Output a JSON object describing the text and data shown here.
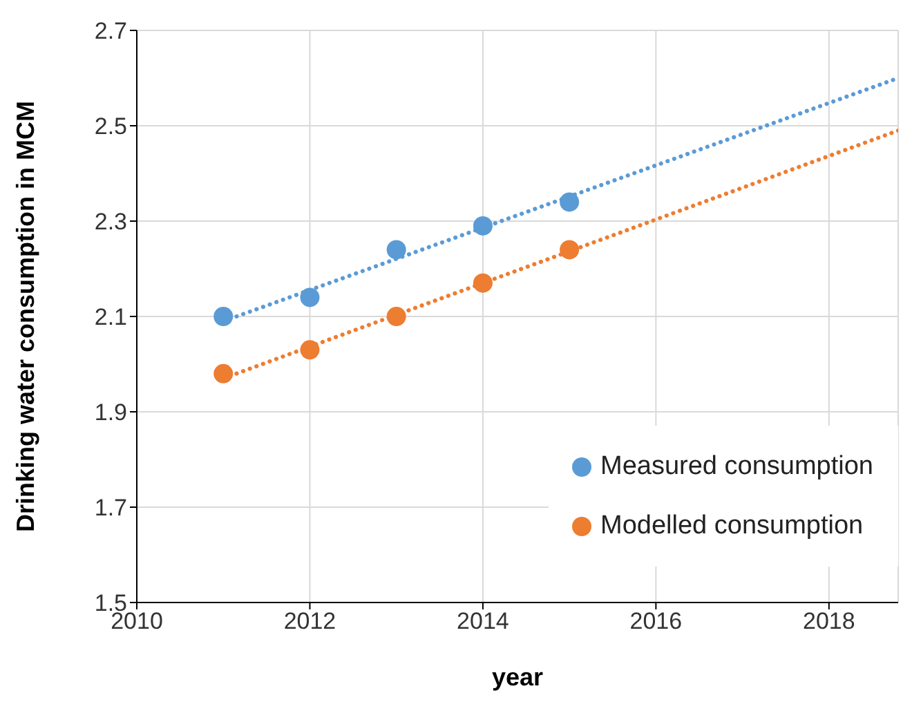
{
  "chart_data": {
    "type": "scatter",
    "xlabel": "year",
    "ylabel": "Drinking water consumption in MCM",
    "xlim": [
      2010,
      2018.8
    ],
    "xticks": [
      2010,
      2012,
      2014,
      2016,
      2018
    ],
    "ylim": [
      1.5,
      2.7
    ],
    "yticks": [
      1.5,
      1.7,
      1.9,
      2.1,
      2.3,
      2.5,
      2.7
    ],
    "grid": true,
    "legend": "bottom right",
    "series": [
      {
        "name": "Measured consumption",
        "marker": "circle",
        "color": "#5b9bd5",
        "x": [
          2011,
          2012,
          2013,
          2014,
          2015
        ],
        "values": [
          2.1,
          2.14,
          2.24,
          2.29,
          2.34
        ]
      },
      {
        "name": "Modelled consumption",
        "marker": "circle",
        "color": "#ed7d31",
        "x": [
          2011,
          2012,
          2013,
          2014,
          2015
        ],
        "values": [
          1.98,
          2.03,
          2.1,
          2.17,
          2.24
        ]
      },
      {
        "type": "line",
        "marker": "none",
        "color": "#5b9bd5",
        "line_style": "dotted",
        "x": [
          2011,
          2018.8
        ],
        "values": [
          2.09,
          2.6
        ]
      },
      {
        "type": "line",
        "marker": "none",
        "color": "#ed7d31",
        "line_style": "dotted",
        "x": [
          2011,
          2018.8
        ],
        "values": [
          1.97,
          2.49
        ]
      }
    ]
  }
}
